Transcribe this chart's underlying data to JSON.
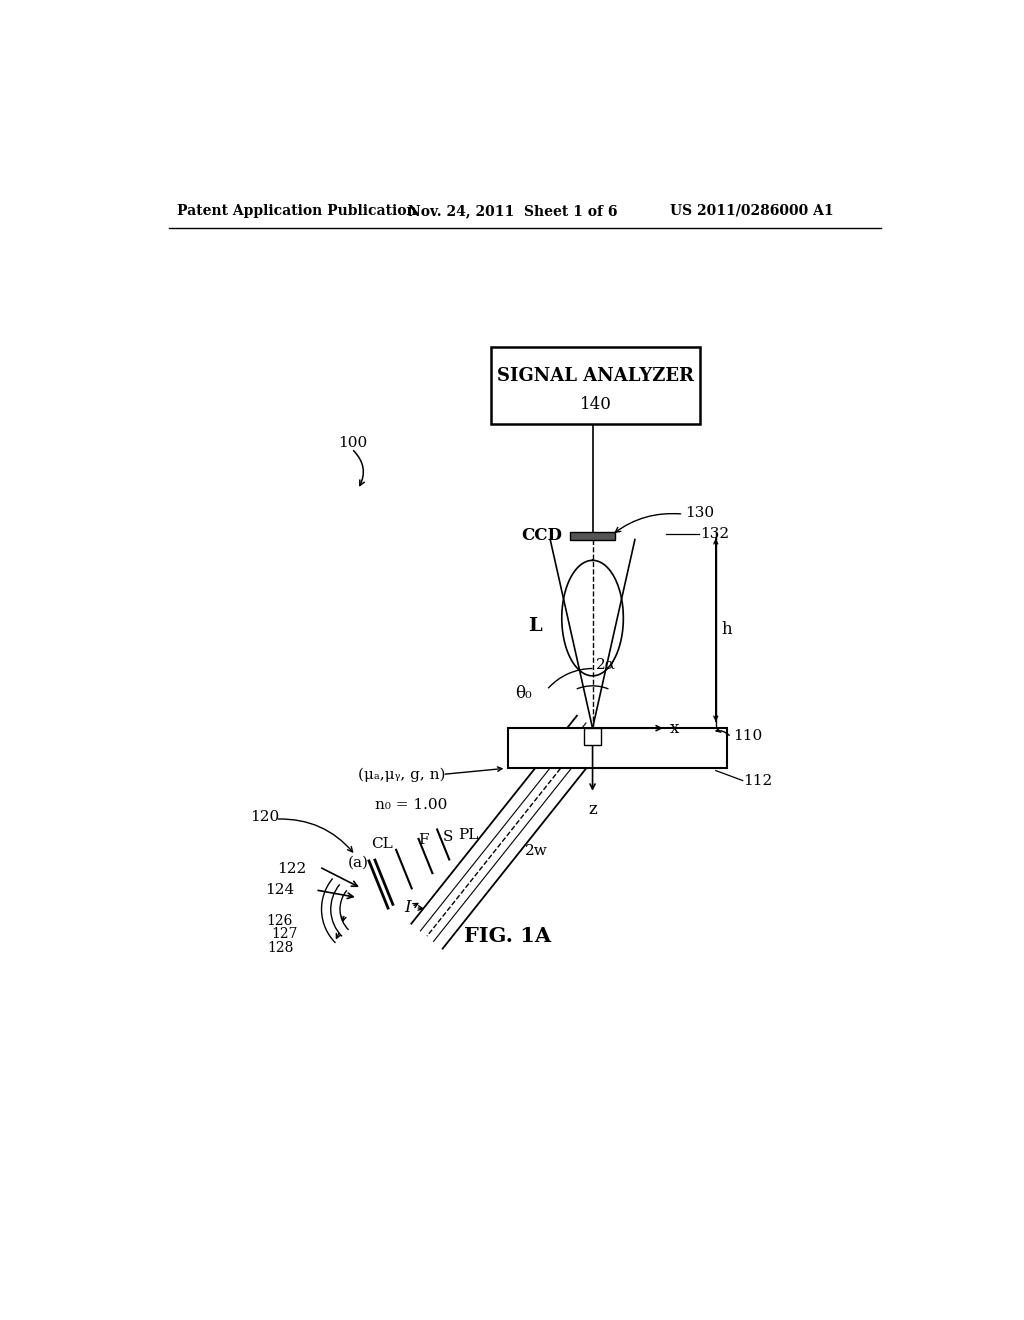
{
  "bg_color": "#ffffff",
  "header_left": "Patent Application Publication",
  "header_mid": "Nov. 24, 2011  Sheet 1 of 6",
  "header_right": "US 2011/0286000 A1",
  "fig_label": "FIG. 1A",
  "signal_analyzer_text": "SIGNAL ANALYZER",
  "signal_analyzer_label": "140",
  "label_100": "100",
  "label_120": "120",
  "label_122": "122",
  "label_124": "124",
  "label_126": "126",
  "label_127": "127",
  "label_128": "128",
  "label_130": "130",
  "label_132": "132",
  "label_110": "110",
  "label_112": "112",
  "label_CL": "CL",
  "label_F": "F",
  "label_S": "S",
  "label_PL": "PL",
  "label_I": "I",
  "label_2w": "2w",
  "label_n0": "n₀ = 1.00",
  "label_params": "(μₐ,μᵧ, g, n)",
  "label_2alpha": "2α",
  "label_theta0": "θ₀",
  "label_h": "h",
  "label_L": "L",
  "label_CCD": "CCD",
  "label_x": "x",
  "label_z": "z",
  "label_a": "(a)"
}
